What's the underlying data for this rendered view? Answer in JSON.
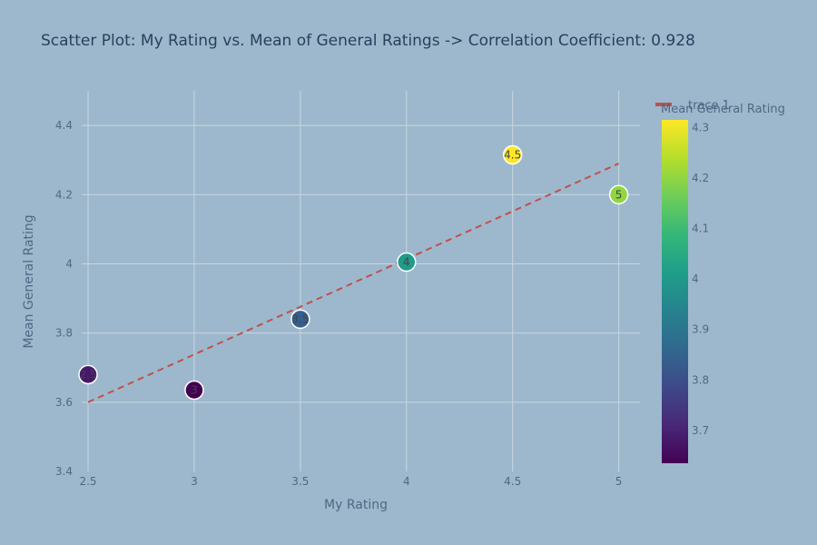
{
  "chart_data": {
    "type": "scatter",
    "title": "Scatter Plot: My Rating vs. Mean of General Ratings  -> Correlation Coefficient: 0.928",
    "xlabel": "My Rating",
    "ylabel": "Mean General Rating",
    "xlim": [
      2.47,
      5.1
    ],
    "ylim": [
      3.4,
      4.5
    ],
    "x_ticks": [
      2.5,
      3,
      3.5,
      4,
      4.5,
      5
    ],
    "x_tick_labels": [
      "2.5",
      "3",
      "3.5",
      "4",
      "4.5",
      "5"
    ],
    "y_ticks": [
      3.4,
      3.6,
      3.8,
      4.0,
      4.2,
      4.4
    ],
    "y_tick_labels": [
      "3.4",
      "3.6",
      "3.8",
      "4",
      "4.2",
      "4.4"
    ],
    "grid": true,
    "points": [
      {
        "x": 2.5,
        "y": 3.68,
        "label": "2.5"
      },
      {
        "x": 3.0,
        "y": 3.635,
        "label": "3"
      },
      {
        "x": 3.5,
        "y": 3.84,
        "label": "3.5"
      },
      {
        "x": 4.0,
        "y": 4.005,
        "label": "4"
      },
      {
        "x": 4.5,
        "y": 4.315,
        "label": "4.5"
      },
      {
        "x": 5.0,
        "y": 4.2,
        "label": "5"
      }
    ],
    "trendline": {
      "name": "trace 1",
      "x": [
        2.5,
        5.0
      ],
      "y": [
        3.6,
        4.29
      ],
      "color": "#c0504d",
      "dash": "dashed"
    },
    "colorbar": {
      "title": "Mean General Rating",
      "colorscale": "viridis",
      "range": [
        3.635,
        4.315
      ],
      "ticks": [
        3.7,
        3.8,
        3.9,
        4.0,
        4.1,
        4.2,
        4.3
      ],
      "tick_labels": [
        "3.7",
        "3.8",
        "3.9",
        "4",
        "4.1",
        "4.2",
        "4.3"
      ]
    },
    "legend": {
      "placement": "top-right",
      "entries": [
        "trace 1"
      ]
    },
    "colors": {
      "background": "#9db8cc",
      "grid": "#c8d6e1",
      "trend": "#c0504d"
    }
  }
}
